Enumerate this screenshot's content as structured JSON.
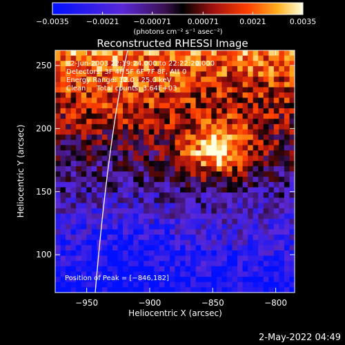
{
  "chart_data": {
    "type": "heatmap",
    "title": "Reconstructed RHESSI Image",
    "xlabel": "Heliocentric X (arcsec)",
    "ylabel": "Heliocentric Y (arcsec)",
    "xlim": [
      -975,
      -785
    ],
    "ylim": [
      70,
      262
    ],
    "xticks": [
      -950,
      -900,
      -850,
      -800
    ],
    "xtick_labels": [
      "−950",
      "−900",
      "−850",
      "−800"
    ],
    "yticks": [
      100,
      150,
      200,
      250
    ],
    "ytick_labels": [
      "100",
      "150",
      "200",
      "250"
    ],
    "colorbar": {
      "range": [
        -0.0035,
        0.0035
      ],
      "ticks": [
        -0.0035,
        -0.0021,
        -0.00071,
        0.00071,
        0.0021,
        0.0035
      ],
      "tick_labels": [
        "−0.0035",
        "−0.0021",
        "−0.00071",
        "0.00071",
        "0.0021",
        "0.0035"
      ],
      "unit_label": "(photons cm⁻² s⁻¹ asec⁻²)"
    },
    "peak": {
      "x": -846,
      "y": 182
    },
    "grid": false,
    "info_lines": [
      "2-Jun-2003 22:19:24.000 to 22:22:20.000",
      "Detectors: 3F 4F 5F 6F 7F 8F, Att 0",
      "Energy Range: 12.0 - 25.0 keV",
      "Clean     Total counts: 3.64E+03"
    ],
    "peak_label": "Position of Peak = [−846,182]",
    "timestamp": "2-May-2022 04:49"
  }
}
